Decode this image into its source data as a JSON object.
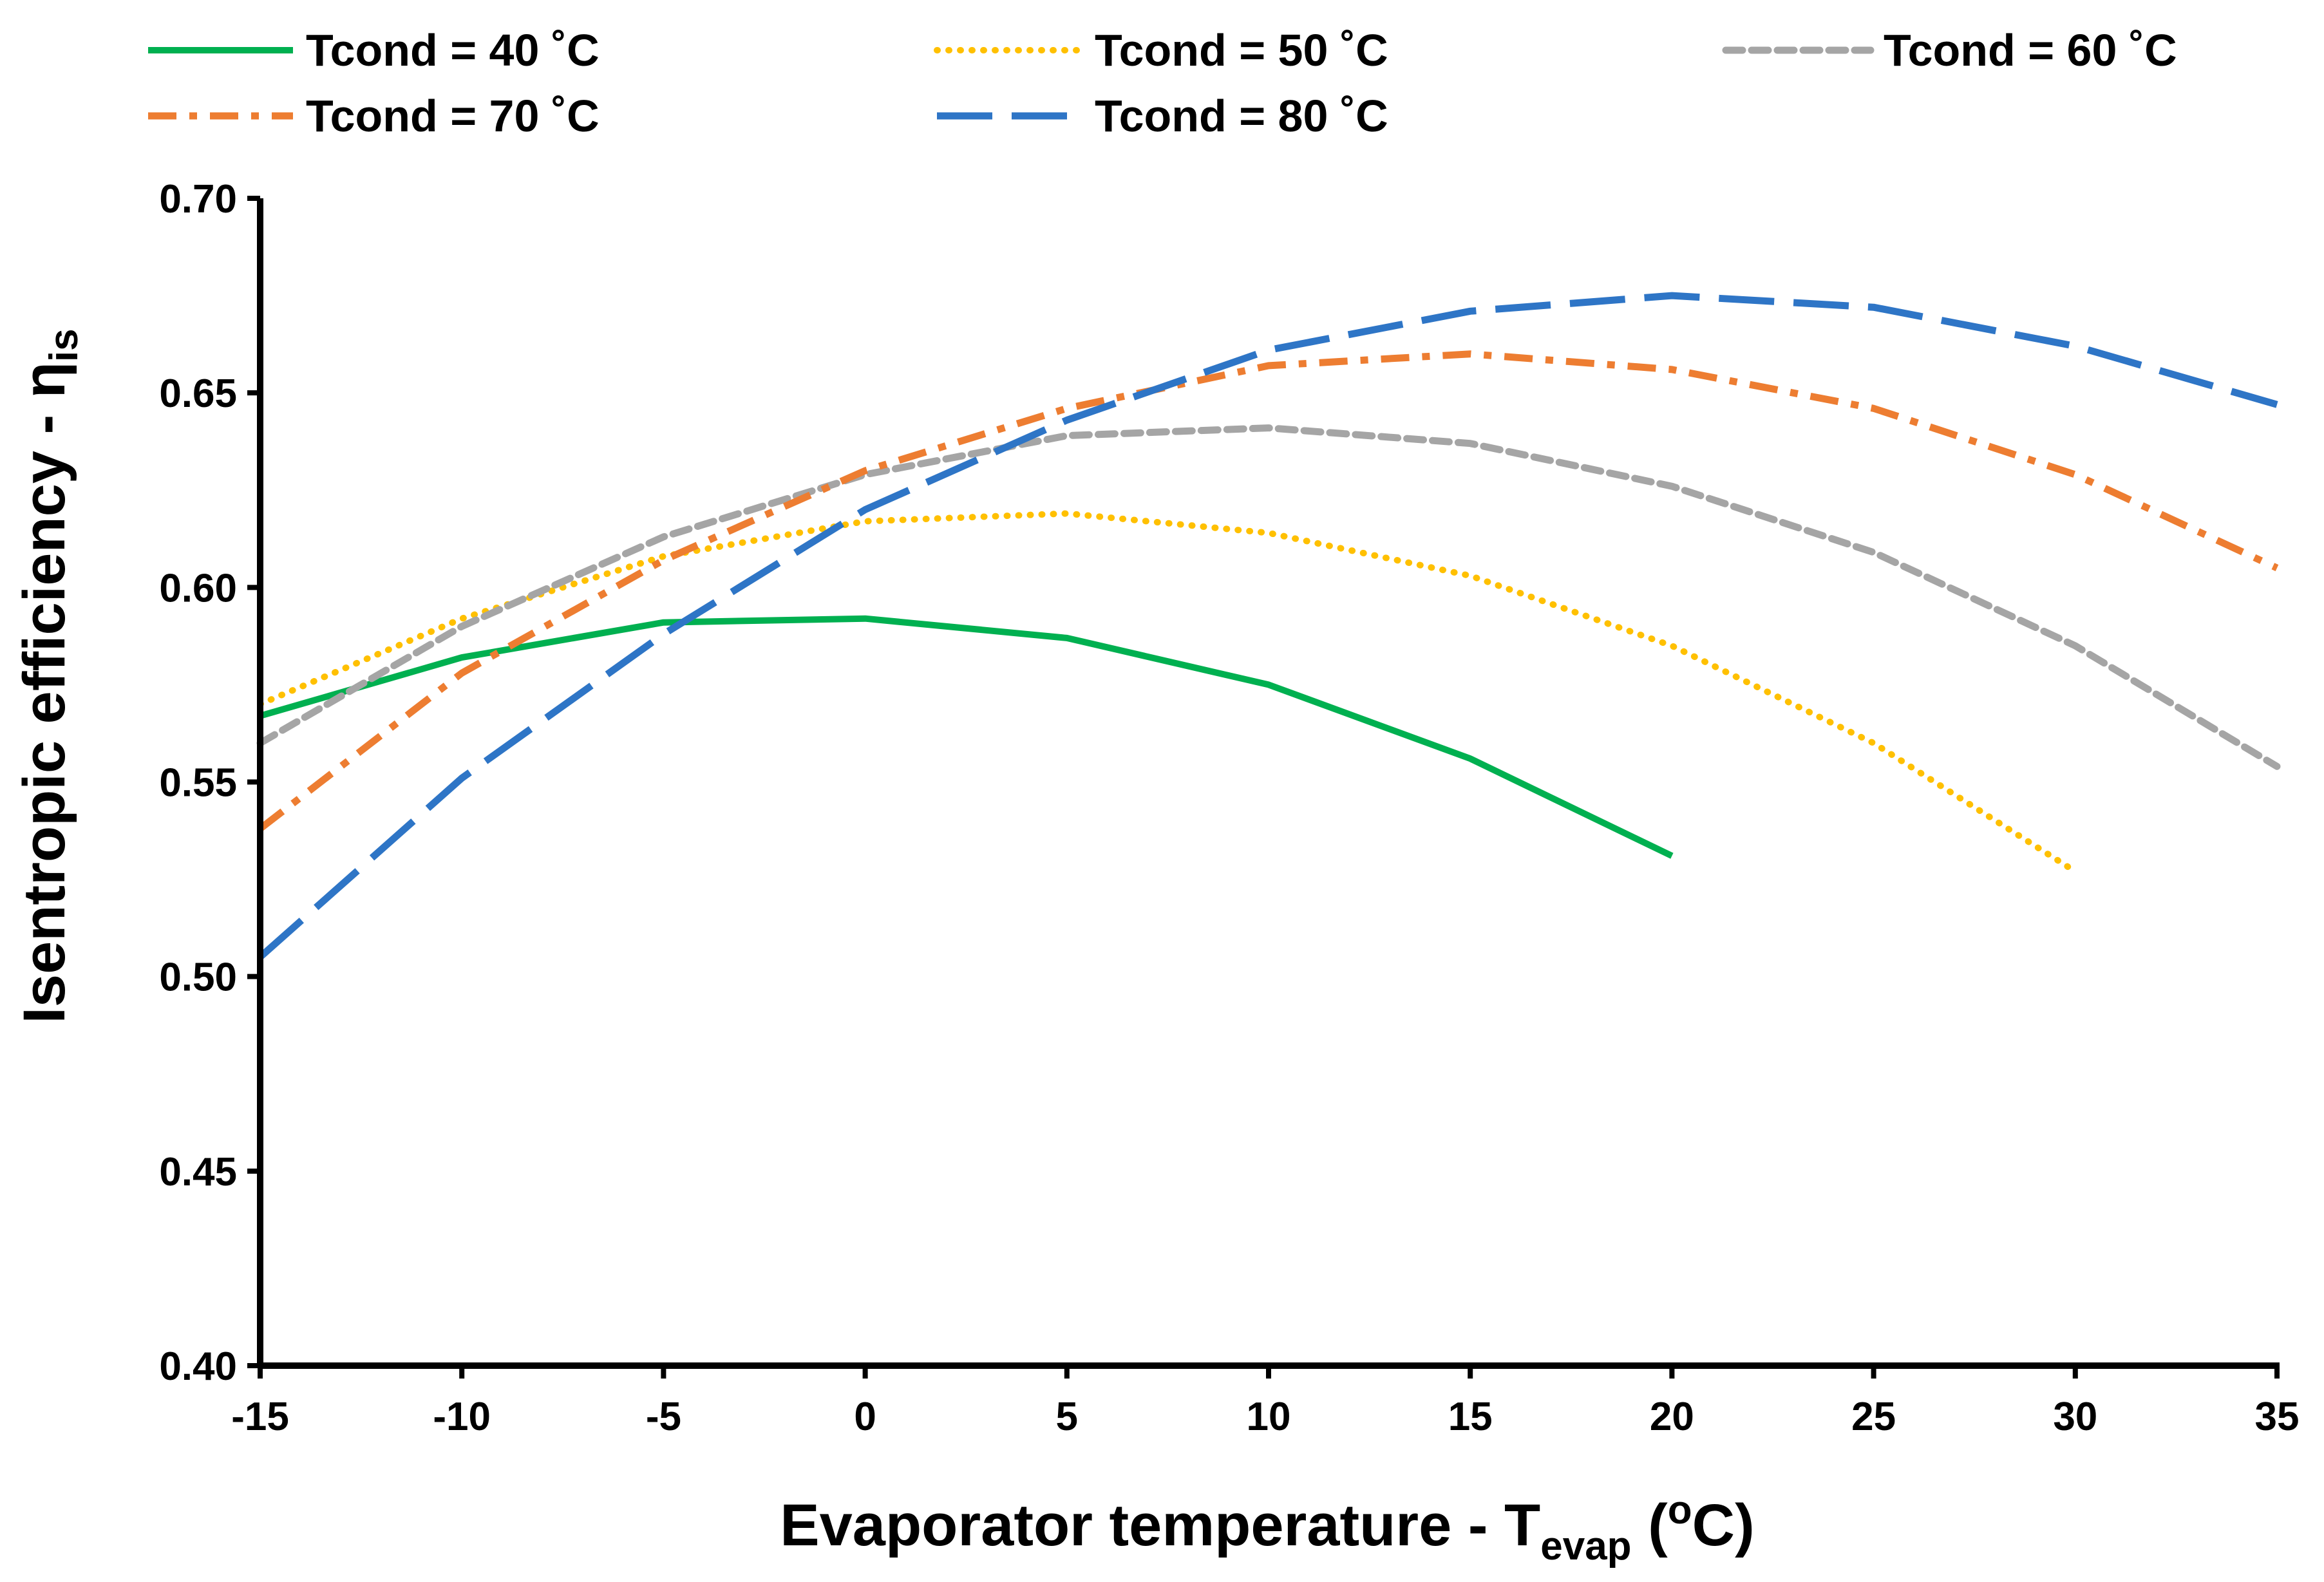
{
  "chart_data": {
    "type": "line",
    "title": "",
    "xlabel": {
      "main": "Evaporator temperature - T",
      "sub": "evap",
      "open": " (",
      "sup": "o",
      "unit": "C)"
    },
    "ylabel": {
      "main": "Isentropic efficiency - η",
      "sub": "is"
    },
    "xlim": [
      -15,
      35
    ],
    "ylim": [
      0.4,
      0.7
    ],
    "x_ticks": [
      -15,
      -10,
      -5,
      0,
      5,
      10,
      15,
      20,
      25,
      30,
      35
    ],
    "x_tick_labels": [
      "-15",
      "-10",
      "-5",
      "0",
      "5",
      "10",
      "15",
      "20",
      "25",
      "30",
      "35"
    ],
    "y_ticks": [
      0.4,
      0.45,
      0.5,
      0.55,
      0.6,
      0.65,
      0.7
    ],
    "y_tick_labels": [
      "0.40",
      "0.45",
      "0.50",
      "0.55",
      "0.60",
      "0.65",
      "0.70"
    ],
    "grid": false,
    "legend_position": "top",
    "series": [
      {
        "name": "Tcond = 40 ˚C",
        "color": "#00b050",
        "style": "solid",
        "x": [
          -15,
          -10,
          -5,
          0,
          5,
          10,
          15,
          20
        ],
        "values": [
          0.567,
          0.582,
          0.591,
          0.592,
          0.587,
          0.575,
          0.556,
          0.531
        ]
      },
      {
        "name": "Tcond = 50 ˚C",
        "color": "#ffc000",
        "style": "dotted",
        "x": [
          -15,
          -10,
          -5,
          0,
          5,
          10,
          15,
          20,
          25,
          30
        ],
        "values": [
          0.57,
          0.592,
          0.608,
          0.617,
          0.619,
          0.614,
          0.603,
          0.585,
          0.56,
          0.527
        ]
      },
      {
        "name": "Tcond = 60 ˚C",
        "color": "#a5a5a5",
        "style": "dashed",
        "x": [
          -15,
          -10,
          -5,
          0,
          5,
          10,
          15,
          20,
          25,
          30,
          35
        ],
        "values": [
          0.56,
          0.59,
          0.613,
          0.629,
          0.639,
          0.641,
          0.637,
          0.626,
          0.609,
          0.585,
          0.554
        ]
      },
      {
        "name": "Tcond = 70 ˚C",
        "color": "#ed7d31",
        "style": "dashdot",
        "x": [
          -15,
          -10,
          -5,
          0,
          5,
          10,
          15,
          20,
          25,
          30,
          35
        ],
        "values": [
          0.538,
          0.578,
          0.607,
          0.63,
          0.646,
          0.657,
          0.66,
          0.656,
          0.646,
          0.629,
          0.605
        ]
      },
      {
        "name": "Tcond = 80 ˚C",
        "color": "#2e75c6",
        "style": "longdash",
        "x": [
          -15,
          -10,
          -5,
          0,
          5,
          10,
          15,
          20,
          25,
          30,
          35
        ],
        "values": [
          0.505,
          0.551,
          0.588,
          0.62,
          0.643,
          0.661,
          0.671,
          0.675,
          0.672,
          0.662,
          0.647
        ]
      }
    ]
  }
}
